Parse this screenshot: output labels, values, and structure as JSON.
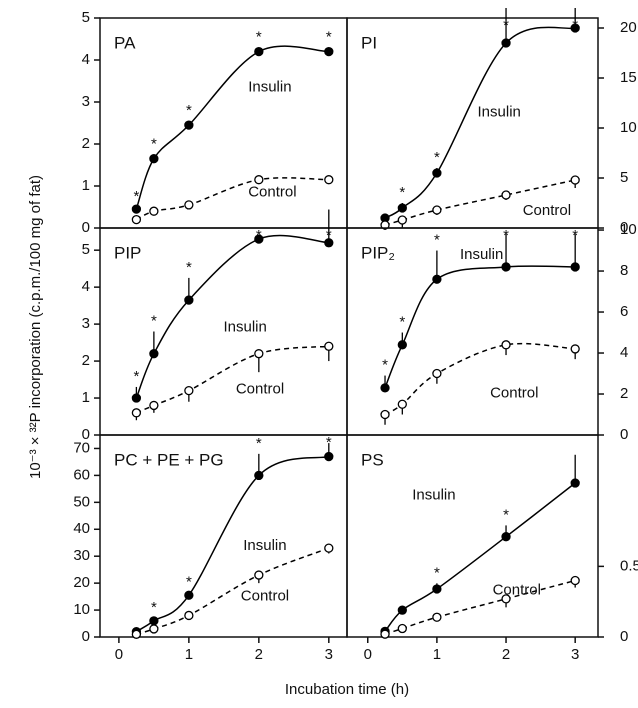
{
  "ylabel": "10⁻³ × ³²P incorporation (c.p.m./100 mg of fat)",
  "xlabel": "Incubation time (h)",
  "chart_data": [
    {
      "type": "line",
      "title": "PA",
      "yaxis_side": "left",
      "xlim": [
        -0.27,
        3.26
      ],
      "ylim": [
        0,
        5
      ],
      "yticks": [
        0,
        1,
        2,
        3,
        4,
        5
      ],
      "x": [
        0.25,
        0.5,
        1,
        2,
        3
      ],
      "series": [
        {
          "name": "Insulin",
          "color": "#000000",
          "linestyle": "solid",
          "marker": "filled",
          "values": [
            0.45,
            1.65,
            2.45,
            4.2,
            4.2
          ],
          "errors": [
            0.05,
            0.1,
            0.1,
            0.1,
            0.1
          ],
          "point_labels": [
            "*",
            "*",
            "*",
            "*",
            "*"
          ]
        },
        {
          "name": "Control",
          "color": "#000000",
          "linestyle": "dashed",
          "marker": "open",
          "values": [
            0.2,
            0.4,
            0.55,
            1.15,
            1.15
          ],
          "errors": [
            0.1,
            0.1,
            0.1,
            0.1,
            0.1
          ]
        }
      ]
    },
    {
      "type": "line",
      "title": "PI",
      "yaxis_side": "right",
      "xlim": [
        -0.3,
        3.33
      ],
      "ylim": [
        0,
        21
      ],
      "yticks": [
        0,
        5,
        10,
        15,
        20
      ],
      "x": [
        0.25,
        0.5,
        1,
        2,
        3
      ],
      "series": [
        {
          "name": "Insulin",
          "color": "#000000",
          "linestyle": "solid",
          "marker": "filled",
          "values": [
            1,
            2,
            5.5,
            18.5,
            20
          ],
          "errors": [
            0.3,
            0.5,
            0.5,
            3.5,
            2
          ],
          "point_labels": [
            null,
            "*",
            "*",
            "*",
            "*"
          ]
        },
        {
          "name": "Control",
          "color": "#000000",
          "linestyle": "dashed",
          "marker": "open",
          "values": [
            0.3,
            0.8,
            1.8,
            3.3,
            4.8
          ],
          "errors": [
            0.5,
            0.8,
            0.5,
            0.5,
            0.8
          ]
        }
      ]
    },
    {
      "type": "line",
      "title": "PIP",
      "yaxis_side": "left",
      "xlim": [
        -0.27,
        3.26
      ],
      "ylim": [
        0,
        5.6
      ],
      "yticks": [
        0,
        1,
        2,
        3,
        4,
        5
      ],
      "x": [
        0.25,
        0.5,
        1,
        2,
        3
      ],
      "series": [
        {
          "name": "Insulin",
          "color": "#000000",
          "linestyle": "solid",
          "marker": "filled",
          "values": [
            1.0,
            2.2,
            3.65,
            5.3,
            5.2
          ],
          "errors": [
            0.3,
            0.6,
            0.6,
            0.1,
            0.9
          ],
          "point_labels": [
            "*",
            "*",
            "*",
            "*",
            "*"
          ]
        },
        {
          "name": "Control",
          "color": "#000000",
          "linestyle": "dashed",
          "marker": "open",
          "values": [
            0.6,
            0.8,
            1.2,
            2.2,
            2.4
          ],
          "errors": [
            0.2,
            0.2,
            0.3,
            0.5,
            0.4
          ]
        }
      ]
    },
    {
      "type": "line",
      "title": "PIP₂",
      "yaxis_side": "right",
      "xlim": [
        -0.3,
        3.33
      ],
      "ylim": [
        0,
        10.1
      ],
      "yticks": [
        0,
        2,
        4,
        6,
        8,
        10
      ],
      "x": [
        0.25,
        0.5,
        1,
        2,
        3
      ],
      "series": [
        {
          "name": "Insulin",
          "color": "#000000",
          "linestyle": "solid",
          "marker": "filled",
          "values": [
            2.3,
            4.4,
            7.6,
            8.2,
            8.2
          ],
          "errors": [
            0.6,
            0.6,
            1.4,
            1.6,
            1.6
          ],
          "point_labels": [
            "*",
            "*",
            "*",
            "*",
            "*"
          ]
        },
        {
          "name": "Control",
          "color": "#000000",
          "linestyle": "dashed",
          "marker": "open",
          "values": [
            1.0,
            1.5,
            3.0,
            4.4,
            4.2
          ],
          "errors": [
            0.5,
            0.5,
            0.5,
            0.5,
            0.5
          ]
        }
      ]
    },
    {
      "type": "line",
      "title": "PC + PE + PG",
      "yaxis_side": "left",
      "xlim": [
        -0.27,
        3.26
      ],
      "ylim": [
        0,
        75
      ],
      "yticks": [
        0,
        10,
        20,
        30,
        40,
        50,
        60,
        70
      ],
      "xticks": [
        0,
        1,
        2,
        3
      ],
      "x": [
        0.25,
        0.5,
        1,
        2,
        3
      ],
      "series": [
        {
          "name": "Insulin",
          "color": "#000000",
          "linestyle": "solid",
          "marker": "filled",
          "values": [
            2,
            6,
            15.5,
            60,
            67
          ],
          "errors": [
            0.5,
            1,
            1,
            8,
            5
          ],
          "point_labels": [
            null,
            "*",
            "*",
            "*",
            "*"
          ]
        },
        {
          "name": "Control",
          "color": "#000000",
          "linestyle": "dashed",
          "marker": "open",
          "values": [
            1,
            3,
            8,
            23,
            33
          ],
          "errors": [
            1,
            1,
            1,
            3,
            2
          ]
        }
      ]
    },
    {
      "type": "line",
      "title": "PS",
      "yaxis_side": "right",
      "xlim": [
        -0.3,
        3.33
      ],
      "ylim": [
        0,
        1.43
      ],
      "yticks": [
        0,
        0.5
      ],
      "xticks": [
        0,
        1,
        2,
        3
      ],
      "x": [
        0.25,
        0.5,
        1,
        2,
        3
      ],
      "series": [
        {
          "name": "Insulin",
          "color": "#000000",
          "linestyle": "solid",
          "marker": "filled",
          "values": [
            0.04,
            0.19,
            0.34,
            0.71,
            1.09
          ],
          "errors": [
            0.02,
            0.03,
            0.04,
            0.08,
            0.2
          ],
          "point_labels": [
            null,
            null,
            "*",
            "*",
            null
          ]
        },
        {
          "name": "Control",
          "color": "#000000",
          "linestyle": "dashed",
          "marker": "open",
          "values": [
            0.02,
            0.06,
            0.14,
            0.27,
            0.4
          ],
          "errors": [
            0.01,
            0.02,
            0.02,
            0.06,
            0.05
          ]
        }
      ]
    }
  ]
}
